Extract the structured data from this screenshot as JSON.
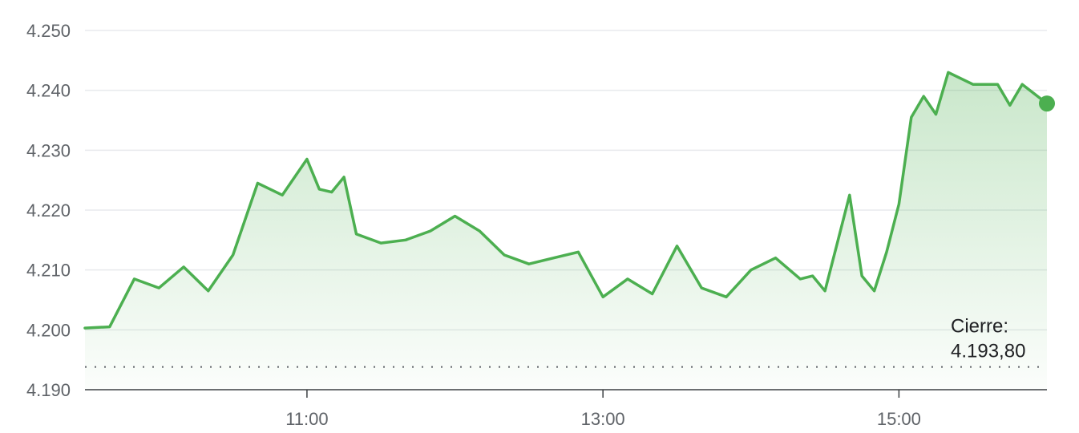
{
  "chart_data": {
    "type": "area",
    "title": "",
    "xlabel": "",
    "ylabel": "",
    "x_ticks": [
      "11:00",
      "13:00",
      "15:00"
    ],
    "y_ticks": [
      "4.190",
      "4.200",
      "4.210",
      "4.220",
      "4.230",
      "4.240",
      "4.250"
    ],
    "y_tick_values": [
      4190,
      4200,
      4210,
      4220,
      4230,
      4240,
      4250
    ],
    "ylim": [
      4190,
      4250
    ],
    "xlim": [
      "09:30",
      "16:00"
    ],
    "grid": true,
    "previous_close": {
      "label_line1": "Cierre:",
      "label_line2": "4.193,80",
      "value": 4193.8
    },
    "series": [
      {
        "color": "#4caf50",
        "x": [
          "09:30",
          "09:40",
          "09:50",
          "10:00",
          "10:10",
          "10:20",
          "10:30",
          "10:40",
          "10:50",
          "11:00",
          "11:05",
          "11:10",
          "11:15",
          "11:20",
          "11:30",
          "11:40",
          "11:50",
          "12:00",
          "12:10",
          "12:20",
          "12:30",
          "12:40",
          "12:50",
          "13:00",
          "13:10",
          "13:20",
          "13:30",
          "13:40",
          "13:50",
          "14:00",
          "14:10",
          "14:20",
          "14:25",
          "14:30",
          "14:35",
          "14:40",
          "14:45",
          "14:50",
          "14:55",
          "15:00",
          "15:05",
          "15:10",
          "15:15",
          "15:20",
          "15:30",
          "15:40",
          "15:45",
          "15:50",
          "16:00"
        ],
        "values": [
          4200.3,
          4200.5,
          4208.5,
          4207.0,
          4210.5,
          4206.5,
          4212.5,
          4224.5,
          4222.5,
          4228.5,
          4223.5,
          4223.0,
          4225.5,
          4216.0,
          4214.5,
          4215.0,
          4216.5,
          4219.0,
          4216.5,
          4212.5,
          4211.0,
          4212.0,
          4213.0,
          4205.5,
          4208.5,
          4206.0,
          4214.0,
          4207.0,
          4205.5,
          4210.0,
          4212.0,
          4208.5,
          4209.0,
          4206.5,
          4214.5,
          4222.5,
          4209.0,
          4206.5,
          4213.0,
          4221.0,
          4235.5,
          4239.0,
          4236.0,
          4243.0,
          4241.0,
          4241.0,
          4237.5,
          4241.0,
          4237.8
        ]
      }
    ]
  }
}
